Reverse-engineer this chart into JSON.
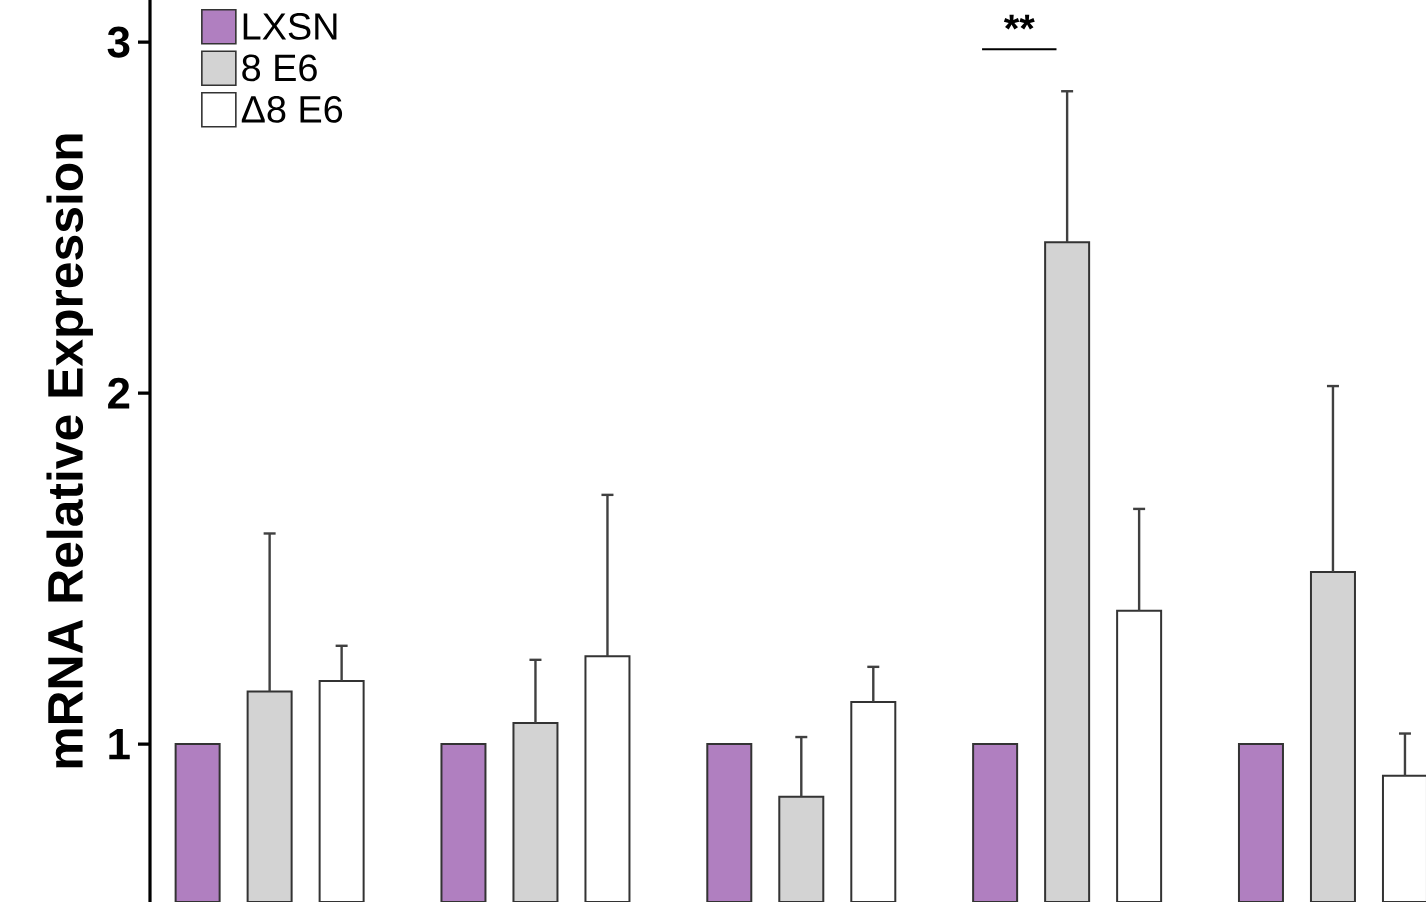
{
  "chart_data": {
    "type": "bar",
    "ylabel": "mRNA Relative Expression",
    "categories": [
      null,
      null,
      null,
      null,
      null
    ],
    "series": [
      {
        "name": "LXSN",
        "color": "#b07fc0",
        "values": [
          1,
          1,
          1,
          1,
          1
        ]
      },
      {
        "name": "8 E6",
        "color": "#d3d3d3",
        "values": [
          1.15,
          1.06,
          0.85,
          2.43,
          1.49
        ],
        "errors": [
          [
            1.15,
            1.6
          ],
          [
            1.06,
            1.24
          ],
          [
            0.85,
            1.02
          ],
          [
            2.43,
            2.86
          ],
          [
            1.49,
            2.02
          ]
        ]
      },
      {
        "name": "Δ8 E6",
        "color": "#ffffff",
        "values": [
          1.18,
          1.25,
          1.12,
          1.38,
          0.91
        ],
        "errors": [
          [
            1.18,
            1.28
          ],
          [
            1.25,
            1.71
          ],
          [
            1.12,
            1.22
          ],
          [
            1.38,
            1.67
          ],
          [
            0.91,
            1.03
          ]
        ]
      }
    ],
    "ylim": [
      0.55,
      3.12
    ],
    "yticks": [
      1,
      2,
      3
    ],
    "legend": "top left",
    "annotations": [
      "**"
    ]
  }
}
